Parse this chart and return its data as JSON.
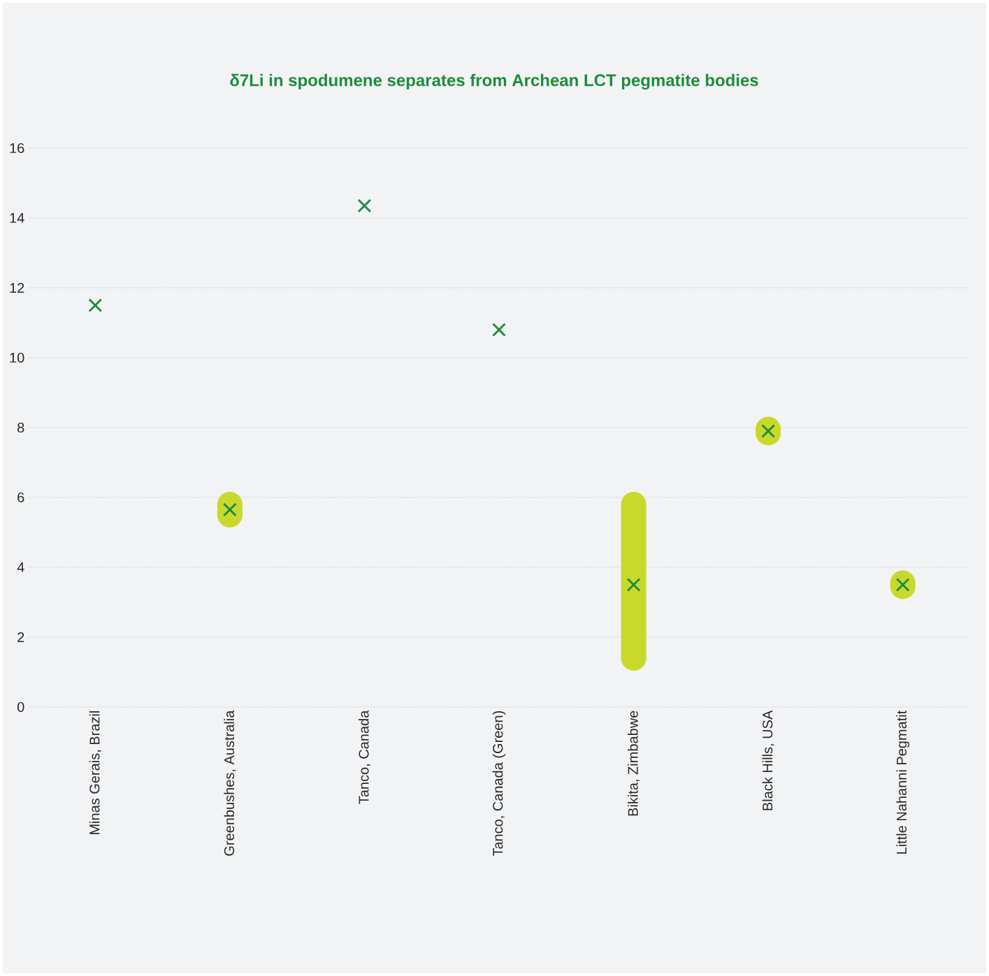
{
  "chart_data": {
    "type": "scatter",
    "title": "δ7Li in spodumene separates from Archean LCT pegmatite bodies",
    "categories": [
      "Minas Gerais, Brazil",
      "Greenbushes, Australia",
      "Tanco, Canada",
      "Tanco, Canada (Green)",
      "Bikita, Zimbabwe",
      "Black Hills, USA",
      "Little Nahanni Pegmatit"
    ],
    "series": [
      {
        "type": "bar",
        "color": "#c8d92b",
        "base": [
          null,
          5.5,
          null,
          null,
          1.4,
          7.85,
          3.45
        ],
        "values": [
          null,
          0.3,
          null,
          null,
          4.4,
          0.1,
          0.1
        ]
      },
      {
        "color": "#1e8c3c",
        "marker": "cross",
        "values": [
          11.5,
          5.65,
          14.35,
          10.8,
          3.5,
          7.9,
          3.5
        ]
      }
    ],
    "ylim": [
      0,
      16
    ],
    "yticks": [
      0,
      2,
      4,
      6,
      8,
      10,
      12,
      14,
      16
    ],
    "grid": "y"
  }
}
